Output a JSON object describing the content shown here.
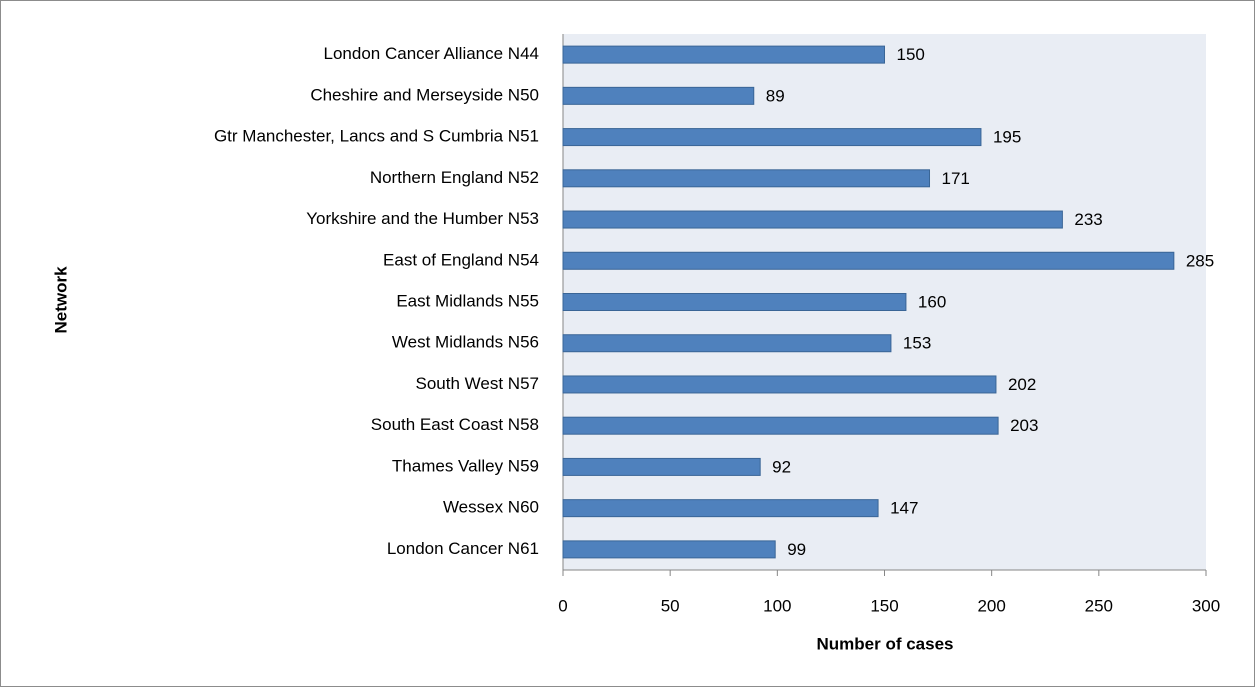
{
  "chart_data": {
    "type": "bar",
    "orientation": "horizontal",
    "x_label": "Number of cases",
    "y_label": "Network",
    "categories": [
      "London Cancer Alliance N44",
      "Cheshire and Merseyside N50",
      "Gtr Manchester, Lancs and S Cumbria N51",
      "Northern England N52",
      "Yorkshire and the Humber N53",
      "East of England N54",
      "East Midlands N55",
      "West Midlands N56",
      "South West N57",
      "South East Coast N58",
      "Thames Valley N59",
      "Wessex N60",
      "London Cancer N61"
    ],
    "values": [
      150,
      89,
      195,
      171,
      233,
      285,
      160,
      153,
      202,
      203,
      92,
      147,
      99
    ],
    "color": "#4f81bd",
    "xlim": [
      0,
      300
    ],
    "xticks": [
      0,
      50,
      100,
      150,
      200,
      250,
      300
    ]
  }
}
